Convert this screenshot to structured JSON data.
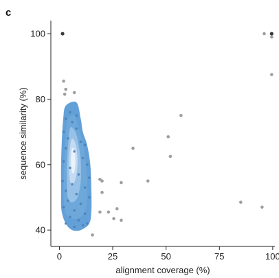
{
  "panel_label": "c",
  "chart_data": {
    "type": "scatter",
    "xlabel": "alignment coverage (%)",
    "ylabel": "sequence similarity (%)",
    "xlim": [
      -4,
      101
    ],
    "ylim": [
      35,
      104
    ],
    "x_ticks": [
      0,
      25,
      50,
      75,
      100
    ],
    "y_ticks": [
      40,
      60,
      80,
      100
    ],
    "grid": false,
    "point_color": "#9e9e9e",
    "dark_point_color": "#3a3a3a",
    "density_colors": [
      "#5b9bd5",
      "#6fa8dc",
      "#9cc3e8",
      "#c9def2",
      "#eef5fc"
    ],
    "points": [
      {
        "x": 1.5,
        "y": 100,
        "dark": true
      },
      {
        "x": 96,
        "y": 100
      },
      {
        "x": 99.5,
        "y": 100,
        "dark": true
      },
      {
        "x": 99.5,
        "y": 99
      },
      {
        "x": 99.5,
        "y": 87.5
      },
      {
        "x": 2,
        "y": 85.5
      },
      {
        "x": 3,
        "y": 83
      },
      {
        "x": 2.5,
        "y": 81.5
      },
      {
        "x": 7,
        "y": 82
      },
      {
        "x": 57,
        "y": 75
      },
      {
        "x": 51,
        "y": 68.5
      },
      {
        "x": 34.5,
        "y": 65
      },
      {
        "x": 52,
        "y": 62.5
      },
      {
        "x": 19,
        "y": 55.5
      },
      {
        "x": 20,
        "y": 55
      },
      {
        "x": 29,
        "y": 54.5
      },
      {
        "x": 41.5,
        "y": 55
      },
      {
        "x": 20,
        "y": 51.5
      },
      {
        "x": 27,
        "y": 46.5
      },
      {
        "x": 19,
        "y": 45.5
      },
      {
        "x": 23,
        "y": 45.5
      },
      {
        "x": 25.5,
        "y": 43.5
      },
      {
        "x": 29,
        "y": 43
      },
      {
        "x": 85,
        "y": 48.5
      },
      {
        "x": 95,
        "y": 47
      },
      {
        "x": 15.5,
        "y": 38.5
      },
      {
        "x": 3,
        "y": 74
      },
      {
        "x": 6,
        "y": 73
      },
      {
        "x": 2,
        "y": 70
      },
      {
        "x": 8,
        "y": 71
      },
      {
        "x": 4,
        "y": 68
      },
      {
        "x": 10,
        "y": 67
      },
      {
        "x": 12,
        "y": 66
      },
      {
        "x": 3,
        "y": 65
      },
      {
        "x": 7,
        "y": 64
      },
      {
        "x": 11,
        "y": 62
      },
      {
        "x": 2,
        "y": 61
      },
      {
        "x": 13,
        "y": 60
      },
      {
        "x": 5,
        "y": 59
      },
      {
        "x": 9,
        "y": 57
      },
      {
        "x": 14,
        "y": 56
      },
      {
        "x": 1.5,
        "y": 55
      },
      {
        "x": 6,
        "y": 54
      },
      {
        "x": 12,
        "y": 53
      },
      {
        "x": 3,
        "y": 52
      },
      {
        "x": 8,
        "y": 51
      },
      {
        "x": 14,
        "y": 50
      },
      {
        "x": 4,
        "y": 49
      },
      {
        "x": 10,
        "y": 48
      },
      {
        "x": 2,
        "y": 47
      },
      {
        "x": 7,
        "y": 46
      },
      {
        "x": 12,
        "y": 45
      },
      {
        "x": 5,
        "y": 44
      },
      {
        "x": 9,
        "y": 43
      },
      {
        "x": 13,
        "y": 42
      },
      {
        "x": 3,
        "y": 42
      },
      {
        "x": 7,
        "y": 41
      },
      {
        "x": 11,
        "y": 41.5
      },
      {
        "x": 5,
        "y": 76
      },
      {
        "x": 8,
        "y": 75
      }
    ]
  }
}
